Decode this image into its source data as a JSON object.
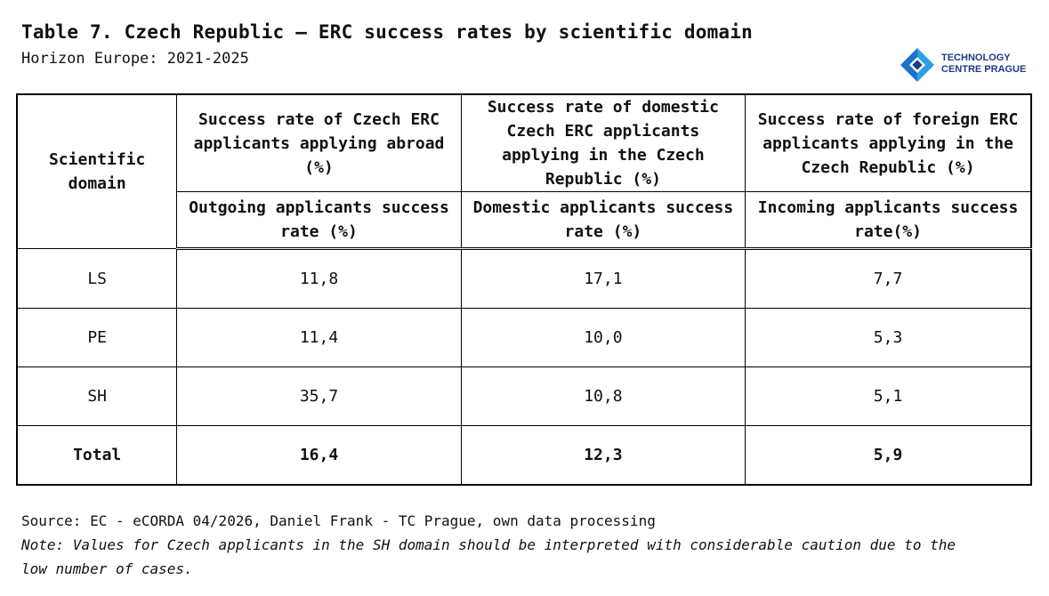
{
  "title": "Table 7. Czech Republic – ERC success rates by scientific domain",
  "subtitle": "Horizon Europe: 2021-2025",
  "logo": {
    "line1": "TECHNOLOGY",
    "line2": "CENTRE PRAGUE",
    "accent": "#1a73c8"
  },
  "chart_data": {
    "type": "table",
    "columns": {
      "domain": "Scientific domain",
      "groups": [
        {
          "header": "Success rate of Czech ERC applicants applying abroad (%)",
          "subheader": "Outgoing applicants success rate (%)"
        },
        {
          "header": "Success rate of domestic Czech ERC applicants applying in the Czech Republic (%)",
          "subheader": "Domestic applicants success rate (%)"
        },
        {
          "header": "Success rate of foreign ERC applicants applying in the Czech Republic (%)",
          "subheader": "Incoming applicants success rate(%)"
        }
      ]
    },
    "rows": [
      {
        "domain": "LS",
        "values": [
          "11,8",
          "17,1",
          "7,7"
        ]
      },
      {
        "domain": "PE",
        "values": [
          "11,4",
          "10,0",
          "5,3"
        ]
      },
      {
        "domain": "SH",
        "values": [
          "35,7",
          "10,8",
          "5,1"
        ]
      }
    ],
    "total": {
      "domain": "Total",
      "values": [
        "16,4",
        "12,3",
        "5,9"
      ]
    }
  },
  "footer": {
    "source": "Source: EC - eCORDA 04/2026, Daniel Frank - TC Prague, own data processing",
    "note": "Note: Values for Czech applicants in the SH domain should be interpreted with considerable caution due to the low number of cases."
  }
}
